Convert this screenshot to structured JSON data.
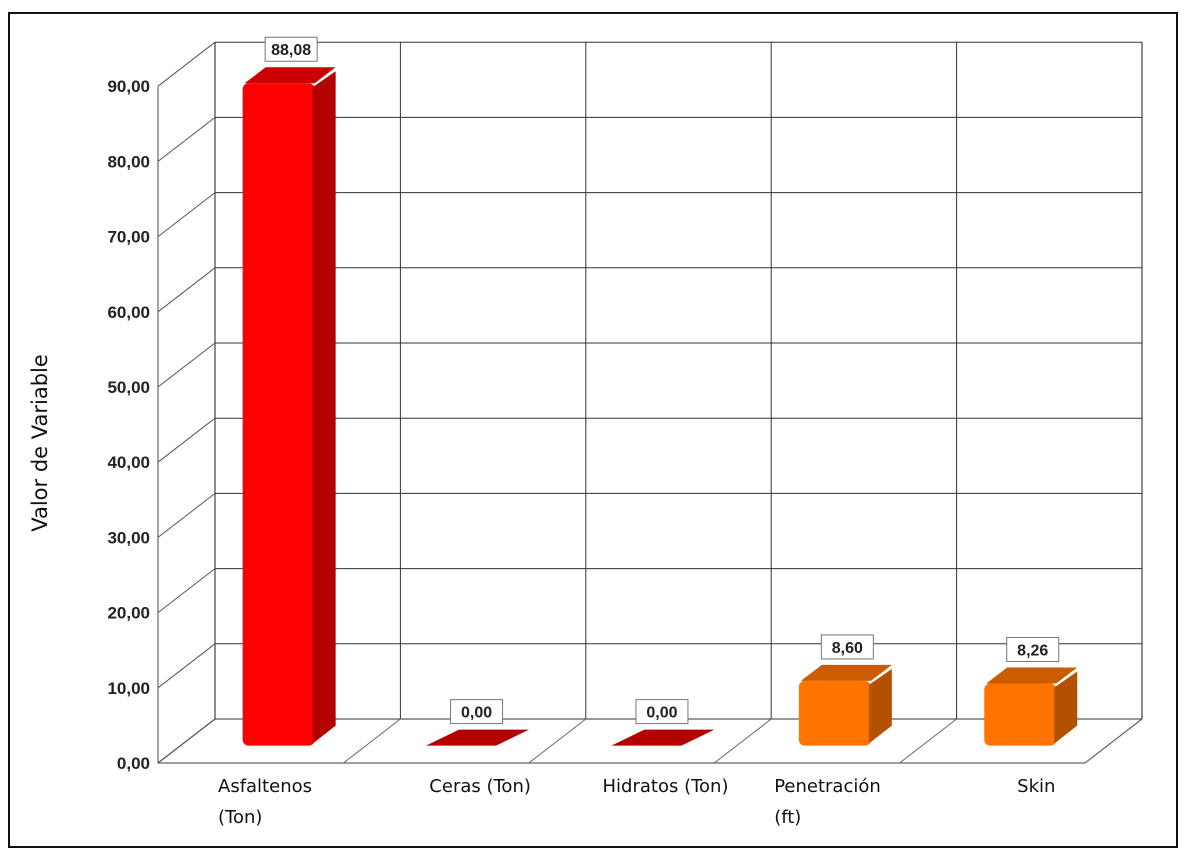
{
  "chart_data": {
    "type": "bar",
    "title": "",
    "xlabel": "",
    "ylabel": "Valor de Variable",
    "ylim": [
      0,
      90
    ],
    "ytick_step": 10,
    "ytick_labels": [
      "0,00",
      "10,00",
      "20,00",
      "30,00",
      "40,00",
      "50,00",
      "60,00",
      "70,00",
      "80,00",
      "90,00"
    ],
    "categories": [
      [
        "Asfaltenos",
        "(Ton)"
      ],
      [
        "Ceras (Ton)"
      ],
      [
        "Hidratos (Ton)"
      ],
      [
        "Penetración",
        "(ft)"
      ],
      [
        "Skin"
      ]
    ],
    "values": [
      88.08,
      0.0,
      0.0,
      8.6,
      8.26
    ],
    "data_labels": [
      "88,08",
      "0,00",
      "0,00",
      "8,60",
      "8,26"
    ],
    "bar_colors": [
      "#ff0000",
      "#b30000",
      "#b30000",
      "#ff7300",
      "#ff7300"
    ],
    "grid": true,
    "legend": "none",
    "style": "3d"
  }
}
